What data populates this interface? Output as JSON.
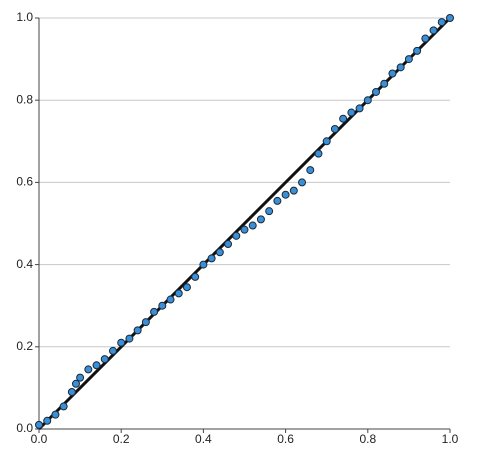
{
  "chart_data": {
    "type": "scatter",
    "x": [
      0.0,
      0.02,
      0.04,
      0.06,
      0.08,
      0.09,
      0.1,
      0.12,
      0.14,
      0.16,
      0.18,
      0.2,
      0.22,
      0.24,
      0.26,
      0.28,
      0.3,
      0.32,
      0.34,
      0.36,
      0.38,
      0.4,
      0.42,
      0.44,
      0.46,
      0.48,
      0.5,
      0.52,
      0.54,
      0.56,
      0.58,
      0.6,
      0.62,
      0.64,
      0.66,
      0.68,
      0.7,
      0.72,
      0.74,
      0.76,
      0.78,
      0.8,
      0.82,
      0.84,
      0.86,
      0.88,
      0.9,
      0.92,
      0.94,
      0.96,
      0.98,
      1.0
    ],
    "values": [
      0.01,
      0.02,
      0.035,
      0.055,
      0.09,
      0.11,
      0.125,
      0.145,
      0.155,
      0.17,
      0.19,
      0.21,
      0.22,
      0.24,
      0.26,
      0.285,
      0.3,
      0.315,
      0.33,
      0.345,
      0.37,
      0.4,
      0.415,
      0.43,
      0.45,
      0.47,
      0.485,
      0.495,
      0.51,
      0.53,
      0.555,
      0.57,
      0.58,
      0.6,
      0.63,
      0.67,
      0.7,
      0.73,
      0.755,
      0.77,
      0.78,
      0.8,
      0.82,
      0.84,
      0.865,
      0.88,
      0.9,
      0.92,
      0.95,
      0.97,
      0.99,
      1.0
    ],
    "color": "#3a8fd6",
    "xlim": [
      0,
      1
    ],
    "ylim": [
      0,
      1
    ],
    "xticks": [
      {
        "value": 0,
        "label": "0.0"
      },
      0.2,
      0.4,
      0.6,
      0.8,
      {
        "value": 1,
        "label": "1.0"
      }
    ],
    "yticks": [
      {
        "value": 0,
        "label": "0.0"
      },
      0.2,
      0.4,
      0.6,
      0.8,
      {
        "value": 1,
        "label": "1.0"
      }
    ],
    "grid": true
  }
}
